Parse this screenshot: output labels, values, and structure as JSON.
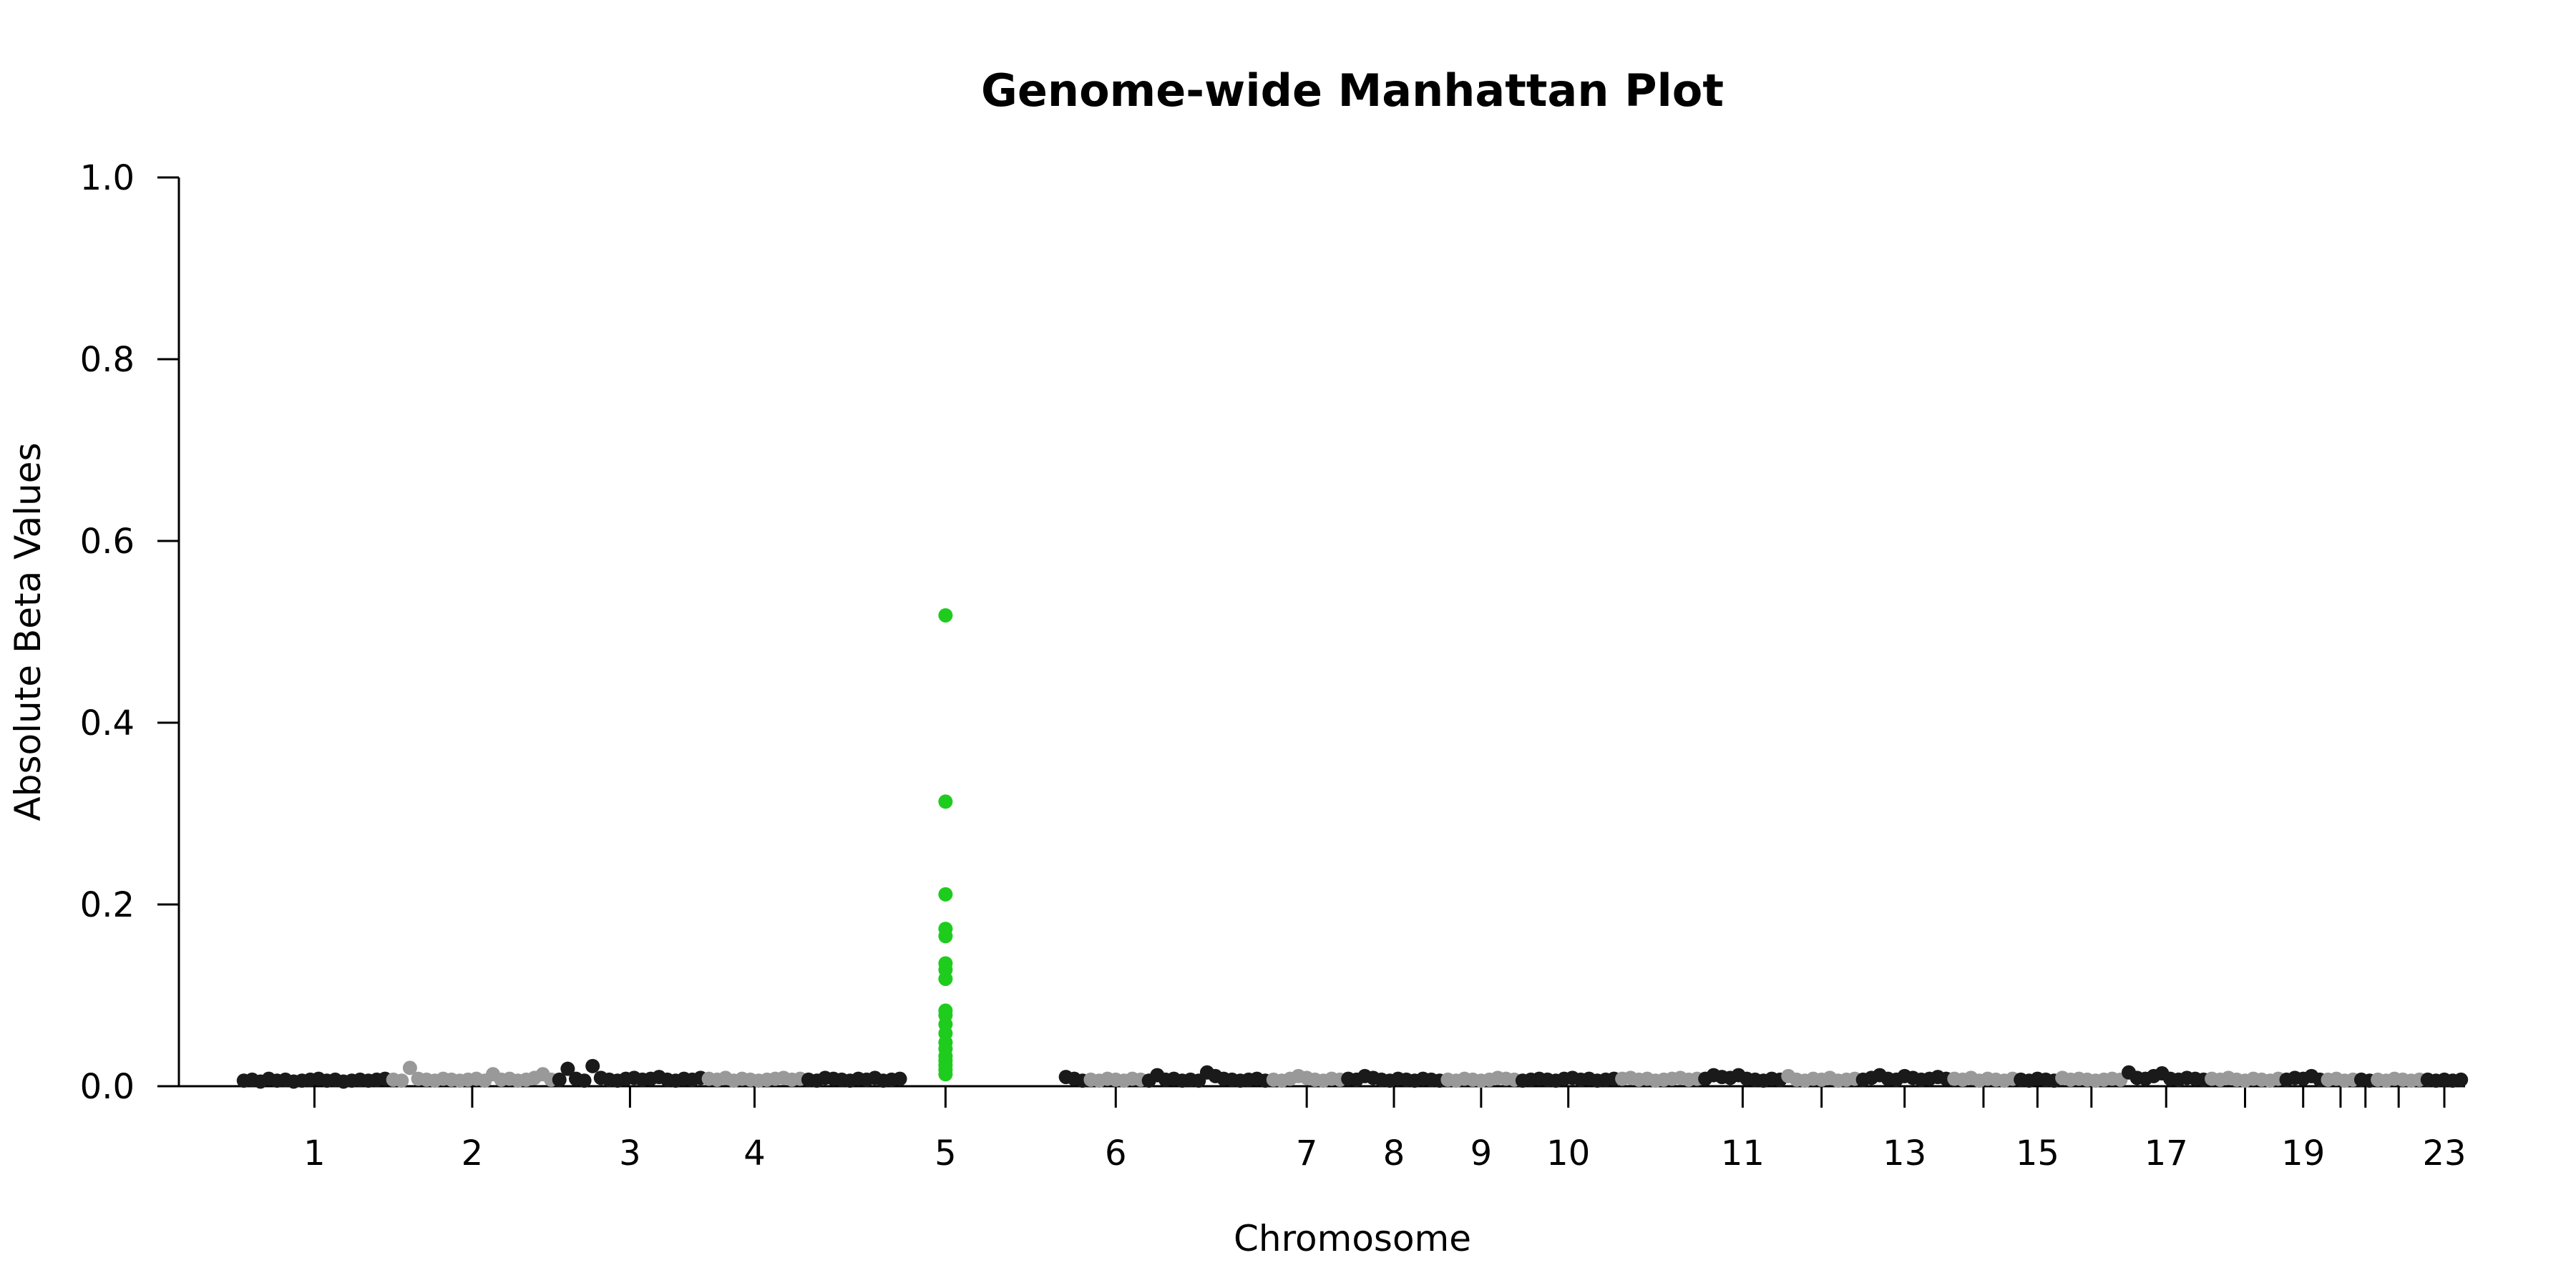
{
  "chart_data": {
    "type": "scatter",
    "title": "Genome-wide Manhattan Plot",
    "xlabel": "Chromosome",
    "ylabel": "Absolute Beta Values",
    "ylim": [
      0,
      1
    ],
    "y_ticks": [
      "0.0",
      "0.2",
      "0.4",
      "0.6",
      "0.8",
      "1.0"
    ],
    "x_tick_labels": [
      "1",
      "2",
      "3",
      "4",
      "5",
      "6",
      "7",
      "8",
      "9",
      "10",
      "11",
      "13",
      "15",
      "17",
      "19",
      "23"
    ],
    "chromosome_colors": {
      "odd": "#1a1a1a",
      "even": "#999999",
      "highlight": "#1ecc1e"
    },
    "chromosomes": [
      {
        "chr": "1",
        "tick": true,
        "label": "1",
        "points": [
          0.003,
          0.004,
          0.002,
          0.005,
          0.003,
          0.004,
          0.002,
          0.003,
          0.004,
          0.005,
          0.003,
          0.004,
          0.002,
          0.003,
          0.004,
          0.003,
          0.004,
          0.005
        ]
      },
      {
        "chr": "2",
        "tick": true,
        "label": "2",
        "points": [
          0.004,
          0.003,
          0.017,
          0.005,
          0.004,
          0.003,
          0.005,
          0.004,
          0.003,
          0.004,
          0.005,
          0.003,
          0.01,
          0.004,
          0.005,
          0.003,
          0.004,
          0.006,
          0.01,
          0.004
        ]
      },
      {
        "chr": "3",
        "tick": true,
        "label": "3",
        "points": [
          0.004,
          0.016,
          0.005,
          0.003,
          0.019,
          0.006,
          0.004,
          0.003,
          0.005,
          0.006,
          0.004,
          0.005,
          0.007,
          0.004,
          0.003,
          0.005,
          0.004,
          0.006
        ]
      },
      {
        "chr": "4",
        "tick": true,
        "label": "4",
        "points": [
          0.005,
          0.004,
          0.006,
          0.003,
          0.005,
          0.004,
          0.003,
          0.004,
          0.005,
          0.006,
          0.004,
          0.005
        ]
      },
      {
        "chr": "5",
        "tick": true,
        "label": "5",
        "highlight": true,
        "points": [
          0.004,
          0.003,
          0.006,
          0.005,
          0.004,
          0.003,
          0.005,
          0.004,
          0.006,
          0.003,
          0.004,
          0.005,
          0.515,
          0.31,
          0.208,
          0.17,
          0.162,
          0.132,
          0.125,
          0.115,
          0.08,
          0.075,
          0.065,
          0.055,
          0.045,
          0.038,
          0.03,
          0.025,
          0.02,
          0.015,
          0.01,
          0.007,
          0.005,
          0.003
        ]
      },
      {
        "chr": "6",
        "tick": true,
        "label": "6",
        "points": [
          0.004,
          0.003,
          0.005,
          0.004,
          0.003,
          0.005,
          0.004
        ]
      },
      {
        "chr": "6b",
        "tick": false,
        "label": "",
        "points": [
          0.003,
          0.009,
          0.004,
          0.005,
          0.003,
          0.004,
          0.003,
          0.012,
          0.008,
          0.005,
          0.004,
          0.003,
          0.004,
          0.005,
          0.003
        ]
      },
      {
        "chr": "7",
        "tick": true,
        "label": "7",
        "points": [
          0.004,
          0.003,
          0.005,
          0.008,
          0.006,
          0.004,
          0.003,
          0.005,
          0.004
        ]
      },
      {
        "chr": "8",
        "tick": true,
        "label": "8",
        "points": [
          0.005,
          0.004,
          0.008,
          0.006,
          0.004,
          0.003,
          0.005,
          0.004,
          0.003,
          0.005,
          0.004,
          0.003
        ]
      },
      {
        "chr": "9",
        "tick": true,
        "label": "9",
        "points": [
          0.004,
          0.003,
          0.005,
          0.004,
          0.003,
          0.004,
          0.006,
          0.005,
          0.004
        ]
      },
      {
        "chr": "10",
        "tick": true,
        "label": "10",
        "points": [
          0.003,
          0.004,
          0.005,
          0.004,
          0.003,
          0.005,
          0.006,
          0.004,
          0.005,
          0.003,
          0.004,
          0.005
        ]
      },
      {
        "chr": "10b",
        "tick": false,
        "label": "",
        "points": [
          0.005,
          0.006,
          0.004,
          0.005,
          0.003,
          0.004,
          0.005,
          0.006,
          0.004,
          0.005
        ]
      },
      {
        "chr": "11",
        "tick": true,
        "label": "11",
        "points": [
          0.005,
          0.009,
          0.007,
          0.006,
          0.009,
          0.005,
          0.004,
          0.003,
          0.005,
          0.004
        ]
      },
      {
        "chr": "12",
        "tick": true,
        "label": "",
        "points": [
          0.008,
          0.004,
          0.003,
          0.005,
          0.004,
          0.006,
          0.003,
          0.004,
          0.005
        ]
      },
      {
        "chr": "13",
        "tick": true,
        "label": "13",
        "points": [
          0.004,
          0.006,
          0.009,
          0.005,
          0.004,
          0.008,
          0.006,
          0.004,
          0.005,
          0.007,
          0.005
        ]
      },
      {
        "chr": "14",
        "tick": true,
        "label": "",
        "points": [
          0.005,
          0.004,
          0.006,
          0.003,
          0.005,
          0.004,
          0.003,
          0.005
        ]
      },
      {
        "chr": "15",
        "tick": true,
        "label": "15",
        "points": [
          0.004,
          0.003,
          0.005,
          0.004,
          0.003
        ]
      },
      {
        "chr": "16",
        "tick": true,
        "label": "",
        "points": [
          0.006,
          0.004,
          0.005,
          0.004,
          0.003,
          0.004,
          0.005,
          0.004
        ]
      },
      {
        "chr": "17",
        "tick": true,
        "label": "17",
        "points": [
          0.012,
          0.006,
          0.005,
          0.008,
          0.011,
          0.005,
          0.004,
          0.006,
          0.005,
          0.004
        ]
      },
      {
        "chr": "18",
        "tick": true,
        "label": "",
        "points": [
          0.005,
          0.004,
          0.006,
          0.004,
          0.003,
          0.005,
          0.004,
          0.003,
          0.005
        ]
      },
      {
        "chr": "19",
        "tick": true,
        "label": "19",
        "points": [
          0.004,
          0.006,
          0.005,
          0.008,
          0.004
        ]
      },
      {
        "chr": "20",
        "tick": true,
        "label": "",
        "points": [
          0.004,
          0.005,
          0.003,
          0.004
        ]
      },
      {
        "chr": "21",
        "tick": true,
        "label": "",
        "points": [
          0.004,
          0.003
        ]
      },
      {
        "chr": "22",
        "tick": true,
        "label": "",
        "points": [
          0.004,
          0.003,
          0.005,
          0.004,
          0.003,
          0.004
        ]
      },
      {
        "chr": "23",
        "tick": true,
        "label": "23",
        "points": [
          0.004,
          0.003,
          0.004,
          0.003,
          0.004
        ]
      }
    ]
  }
}
